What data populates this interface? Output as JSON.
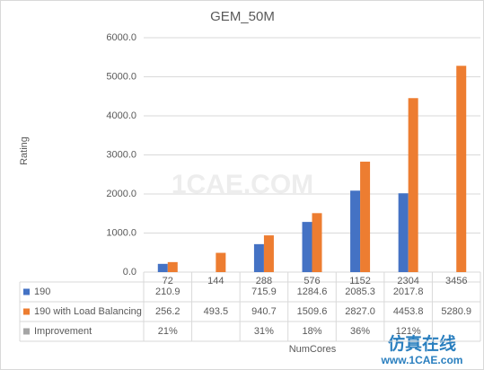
{
  "chart_data": {
    "type": "bar",
    "title": "GEM_50M",
    "y_label": "Rating",
    "x_label": "NumCores",
    "categories": [
      "72",
      "144",
      "288",
      "576",
      "1152",
      "2304",
      "3456"
    ],
    "series": [
      {
        "name": "190",
        "color": "#4472c4",
        "values": [
          210.9,
          null,
          715.9,
          1284.6,
          2085.3,
          2017.8,
          null
        ],
        "value_labels": [
          "210.9",
          null,
          "715.9",
          "1284.6",
          "2085.3",
          "2017.8",
          null
        ]
      },
      {
        "name": "190 with Load Balancing",
        "color": "#ed7d31",
        "values": [
          256.2,
          493.5,
          940.7,
          1509.6,
          2827.0,
          4453.8,
          5280.9
        ],
        "value_labels": [
          "256.2",
          "493.5",
          "940.7",
          "1509.6",
          "2827.0",
          "4453.8",
          "5280.9"
        ]
      },
      {
        "name": "Improvement",
        "color": "#a5a5a5",
        "table_only": true,
        "values": [
          21,
          null,
          31,
          18,
          36,
          121,
          null
        ],
        "value_labels": [
          "21%",
          null,
          "31%",
          "18%",
          "36%",
          "121%",
          null
        ]
      }
    ],
    "ylim": [
      0,
      6000
    ],
    "yticks": [
      {
        "value": 0,
        "label": "0.0"
      },
      {
        "value": 1000,
        "label": "1000.0"
      },
      {
        "value": 2000,
        "label": "2000.0"
      },
      {
        "value": 3000,
        "label": "3000.0"
      },
      {
        "value": 4000,
        "label": "4000.0"
      },
      {
        "value": 5000,
        "label": "5000.0"
      },
      {
        "value": 6000,
        "label": "6000.0"
      }
    ],
    "grid": true
  },
  "watermark": {
    "text": "1CAE.COM",
    "brand": "仿真在线",
    "url": "www.1CAE.com"
  }
}
